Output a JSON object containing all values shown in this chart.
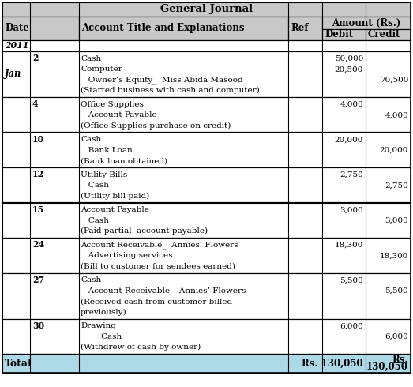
{
  "title": "General Journal",
  "year_row": "2011",
  "entries": [
    {
      "month": "Jan",
      "day": "2",
      "lines": [
        "Cash",
        "Computer",
        "   Owner’s Equity_  Miss Abida Masood",
        "(Started business with cash and computer)"
      ],
      "debit_row": [
        0,
        1
      ],
      "debit_val": [
        "50,000",
        "20,500"
      ],
      "credit_row": [
        2
      ],
      "credit_val": [
        "70,500"
      ]
    },
    {
      "month": "",
      "day": "4",
      "lines": [
        "Office Supplies",
        "   Account Payable",
        "(Office Supplies purchase on credit)"
      ],
      "debit_row": [
        0
      ],
      "debit_val": [
        "4,000"
      ],
      "credit_row": [
        1
      ],
      "credit_val": [
        "4,000"
      ]
    },
    {
      "month": "",
      "day": "10",
      "lines": [
        "Cash",
        "   Bank Loan",
        "(Bank loan obtained)"
      ],
      "debit_row": [
        0
      ],
      "debit_val": [
        "20,000"
      ],
      "credit_row": [
        1
      ],
      "credit_val": [
        "20,000"
      ]
    },
    {
      "month": "",
      "day": "12",
      "lines": [
        "Utility Bills",
        "   Cash",
        "(Utility bill paid)"
      ],
      "debit_row": [
        0
      ],
      "debit_val": [
        "2,750"
      ],
      "credit_row": [
        1
      ],
      "credit_val": [
        "2,750"
      ]
    },
    {
      "month": "",
      "day": "15",
      "lines": [
        "Account Payable",
        "   Cash",
        "(Paid partial  account payable)"
      ],
      "debit_row": [
        0
      ],
      "debit_val": [
        "3,000"
      ],
      "credit_row": [
        1
      ],
      "credit_val": [
        "3,000"
      ]
    },
    {
      "month": "",
      "day": "24",
      "lines": [
        "Account Receivable_  Annies’ Flowers",
        "   Advertising services",
        "(Bill to customer for sendees earned)"
      ],
      "debit_row": [
        0
      ],
      "debit_val": [
        "18,300"
      ],
      "credit_row": [
        1
      ],
      "credit_val": [
        "18,300"
      ]
    },
    {
      "month": "",
      "day": "27",
      "lines": [
        "Cash",
        "   Account Receivable_  Annies’ Flowers",
        "(Received cash from customer billed",
        "previously)"
      ],
      "debit_row": [
        0
      ],
      "debit_val": [
        "5,500"
      ],
      "credit_row": [
        1
      ],
      "credit_val": [
        "5,500"
      ]
    },
    {
      "month": "",
      "day": "30",
      "lines": [
        "Drawing",
        "        Cash",
        "(Withdrew of cash by owner)"
      ],
      "debit_row": [
        0
      ],
      "debit_val": [
        "6,000"
      ],
      "credit_row": [
        1
      ],
      "credit_val": [
        "6,000"
      ]
    }
  ],
  "total_label": "Total",
  "total_debit": "Rs. 130,050",
  "total_credit_line1": "Rs.",
  "total_credit_line2": "130,050",
  "bg_header": "#c8c8c8",
  "bg_total": "#add8e6",
  "bg_white": "#ffffff",
  "border_color": "#000000",
  "title_fontsize": 9.5,
  "header_fontsize": 8.5,
  "body_fontsize": 7.8,
  "lh": 0.0285
}
